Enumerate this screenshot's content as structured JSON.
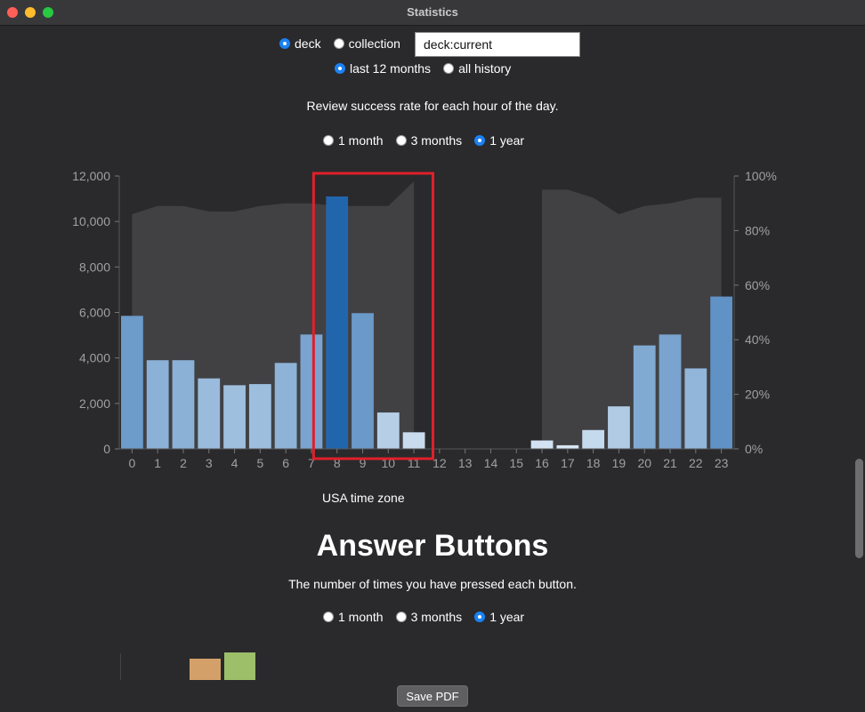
{
  "window": {
    "title": "Statistics"
  },
  "scope": {
    "options": [
      {
        "label": "deck",
        "selected": true
      },
      {
        "label": "collection",
        "selected": false
      }
    ],
    "search_value": "deck:current"
  },
  "range": {
    "options": [
      {
        "label": "last 12 months",
        "selected": true
      },
      {
        "label": "all history",
        "selected": false
      }
    ]
  },
  "hourly": {
    "subtitle": "Review success rate for each hour of the day.",
    "period_options": [
      {
        "label": "1 month",
        "selected": false
      },
      {
        "label": "3 months",
        "selected": false
      },
      {
        "label": "1 year",
        "selected": true
      }
    ],
    "timezone_label": "USA time zone"
  },
  "answer_buttons": {
    "title": "Answer Buttons",
    "subtitle": "The number of times you have pressed each button.",
    "period_options": [
      {
        "label": "1 month",
        "selected": false
      },
      {
        "label": "3 months",
        "selected": false
      },
      {
        "label": "1 year",
        "selected": true
      }
    ],
    "partial_bar_colors": [
      "#d4a06a",
      "#9dbf6a"
    ]
  },
  "footer": {
    "save_label": "Save PDF"
  },
  "colors": {
    "background": "#2a2a2c",
    "highlight_box": "#e0202a",
    "accent": "#1a82f4"
  },
  "chart_data": {
    "type": "bar",
    "x": [
      0,
      1,
      2,
      3,
      4,
      5,
      6,
      7,
      8,
      9,
      10,
      11,
      12,
      13,
      14,
      15,
      16,
      17,
      18,
      19,
      20,
      21,
      22,
      23
    ],
    "x_tick_labels": [
      "0",
      "1",
      "2",
      "3",
      "4",
      "5",
      "6",
      "7",
      "8",
      "9",
      "10",
      "11",
      "12",
      "13",
      "14",
      "15",
      "16",
      "17",
      "18",
      "19",
      "20",
      "21",
      "22",
      "23"
    ],
    "values": [
      5850,
      3900,
      3900,
      3100,
      2800,
      2850,
      3780,
      5030,
      11100,
      5970,
      1600,
      730,
      0,
      0,
      0,
      0,
      370,
      160,
      830,
      1870,
      4550,
      5030,
      3540,
      6700
    ],
    "success_rate_pct": [
      86,
      89,
      89,
      87,
      87,
      89,
      90,
      90,
      89,
      89,
      89,
      98,
      null,
      null,
      null,
      null,
      95,
      95,
      92,
      86,
      89,
      90,
      92,
      92
    ],
    "ylim": [
      0,
      12000
    ],
    "y_ticks": [
      "0",
      "2,000",
      "4,000",
      "6,000",
      "8,000",
      "10,000",
      "12,000"
    ],
    "y2lim": [
      0,
      100
    ],
    "y2_ticks": [
      "0%",
      "20%",
      "40%",
      "60%",
      "80%",
      "100%"
    ],
    "highlighted_hours": [
      8,
      9,
      10,
      11
    ],
    "grid": false
  }
}
